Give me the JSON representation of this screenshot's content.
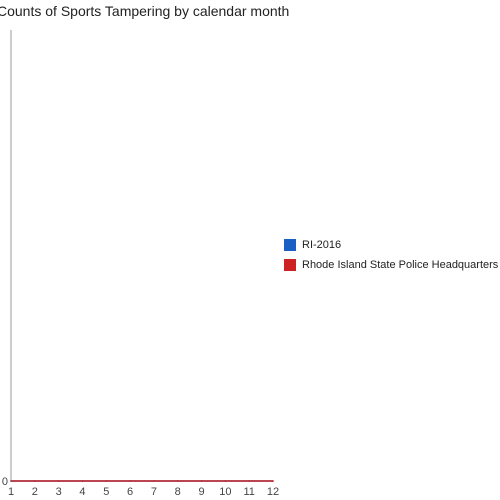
{
  "chart_data": {
    "type": "line",
    "title": "Counts of Sports Tampering by calendar month",
    "xlabel": "",
    "ylabel": "",
    "categories": [
      "1",
      "2",
      "3",
      "4",
      "5",
      "6",
      "7",
      "8",
      "9",
      "10",
      "11",
      "12"
    ],
    "y_tick_labels": [
      "0"
    ],
    "ylim": [
      0,
      1
    ],
    "grid": false,
    "legend_position": "right",
    "series": [
      {
        "name": "RI-2016",
        "color": "#1a5fc4",
        "values": [
          0,
          0,
          0,
          0,
          0,
          0,
          0,
          0,
          0,
          0,
          0,
          0
        ]
      },
      {
        "name": "Rhode Island State Police Headquarters",
        "color": "#cc2222",
        "values": [
          0,
          0,
          0,
          0,
          0,
          0,
          0,
          0,
          0,
          0,
          0,
          0
        ]
      }
    ]
  }
}
